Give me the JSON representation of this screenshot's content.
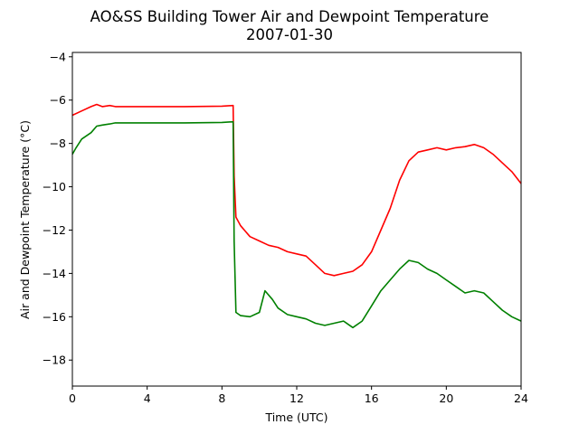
{
  "chart_data": {
    "type": "line",
    "title": "AO&SS Building Tower Air and Dewpoint Temperature",
    "subtitle": "2007-01-30",
    "xlabel": "Time (UTC)",
    "ylabel": "Air and Dewpoint Temperature (°C)",
    "xlim": [
      0,
      24
    ],
    "ylim": [
      -19.2,
      -3.8
    ],
    "xticks": [
      0,
      4,
      8,
      12,
      16,
      20,
      24
    ],
    "yticks": [
      -18,
      -16,
      -14,
      -12,
      -10,
      -8,
      -6,
      -4
    ],
    "grid": false,
    "legend": "none",
    "series": [
      {
        "color": "#ff0000",
        "x": [
          0,
          0.5,
          1.0,
          1.3,
          1.6,
          2.0,
          2.3,
          4.0,
          6.0,
          8.0,
          8.6,
          8.65,
          8.75,
          9.0,
          9.5,
          10.0,
          10.5,
          11.0,
          11.5,
          12.0,
          12.5,
          13.0,
          13.5,
          14.0,
          14.5,
          15.0,
          15.5,
          16.0,
          16.5,
          17.0,
          17.5,
          18.0,
          18.5,
          19.0,
          19.5,
          20.0,
          20.5,
          21.0,
          21.5,
          22.0,
          22.5,
          23.0,
          23.5,
          24.0
        ],
        "y": [
          -6.7,
          -6.5,
          -6.3,
          -6.2,
          -6.3,
          -6.25,
          -6.3,
          -6.3,
          -6.3,
          -6.28,
          -6.25,
          -9.5,
          -11.4,
          -11.8,
          -12.3,
          -12.5,
          -12.7,
          -12.8,
          -13.0,
          -13.1,
          -13.2,
          -13.6,
          -14.0,
          -14.1,
          -14.0,
          -13.9,
          -13.6,
          -13.0,
          -12.0,
          -11.0,
          -9.7,
          -8.8,
          -8.4,
          -8.3,
          -8.2,
          -8.3,
          -8.2,
          -8.15,
          -8.05,
          -8.2,
          -8.5,
          -8.9,
          -9.3,
          -9.85
        ]
      },
      {
        "color": "#008000",
        "x": [
          0,
          0.2,
          0.5,
          1.0,
          1.3,
          1.6,
          2.0,
          2.3,
          4.0,
          6.0,
          8.0,
          8.6,
          8.65,
          8.75,
          9.0,
          9.5,
          10.0,
          10.3,
          10.7,
          11.0,
          11.5,
          12.0,
          12.5,
          13.0,
          13.5,
          14.0,
          14.5,
          15.0,
          15.5,
          16.0,
          16.5,
          17.0,
          17.5,
          18.0,
          18.5,
          19.0,
          19.5,
          20.0,
          20.5,
          21.0,
          21.5,
          22.0,
          22.5,
          23.0,
          23.5,
          24.0
        ],
        "y": [
          -8.5,
          -8.2,
          -7.8,
          -7.5,
          -7.2,
          -7.15,
          -7.1,
          -7.05,
          -7.05,
          -7.05,
          -7.03,
          -7.0,
          -12.5,
          -15.8,
          -15.95,
          -16.0,
          -15.8,
          -14.8,
          -15.2,
          -15.6,
          -15.9,
          -16.0,
          -16.1,
          -16.3,
          -16.4,
          -16.3,
          -16.2,
          -16.5,
          -16.2,
          -15.5,
          -14.8,
          -14.3,
          -13.8,
          -13.4,
          -13.5,
          -13.8,
          -14.0,
          -14.3,
          -14.6,
          -14.9,
          -14.8,
          -14.9,
          -15.3,
          -15.7,
          -16.0,
          -16.2
        ]
      }
    ]
  }
}
